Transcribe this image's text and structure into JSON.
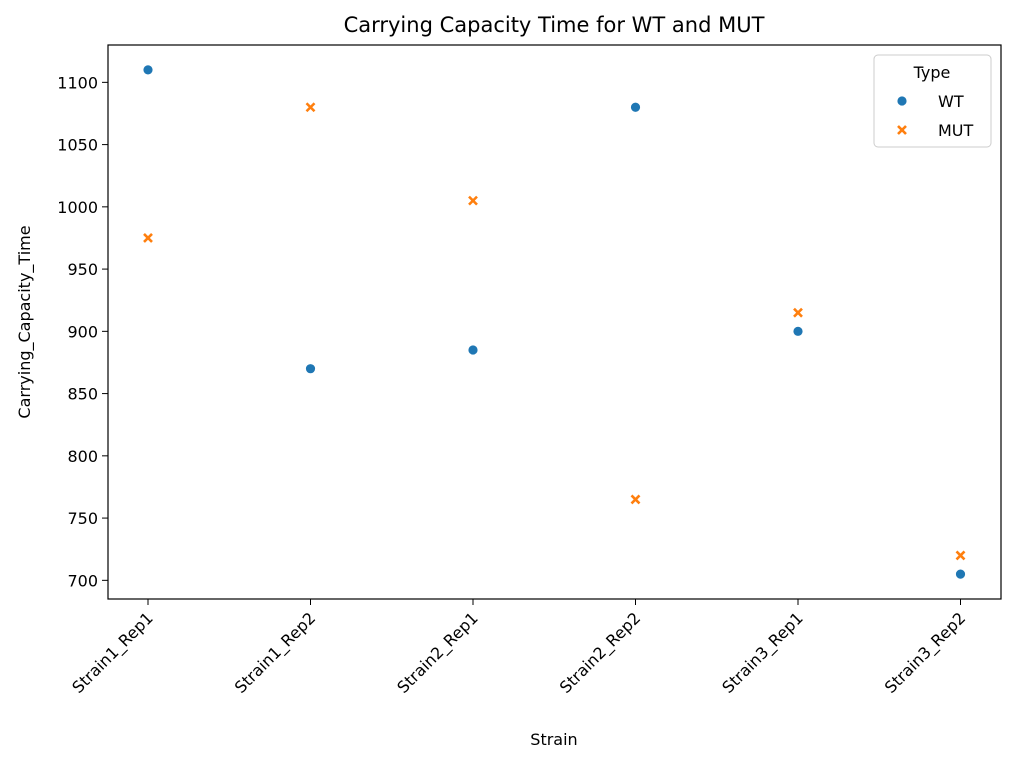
{
  "chart_data": {
    "type": "scatter",
    "title": "Carrying Capacity Time for WT and MUT",
    "xlabel": "Strain",
    "ylabel": "Carrying_Capacity_Time",
    "categories": [
      "Strain1_Rep1",
      "Strain1_Rep2",
      "Strain2_Rep1",
      "Strain2_Rep2",
      "Strain3_Rep1",
      "Strain3_Rep2"
    ],
    "ylim": [
      685,
      1130
    ],
    "yticks": [
      700,
      750,
      800,
      850,
      900,
      950,
      1000,
      1050,
      1100
    ],
    "grid": false,
    "legend": {
      "title": "Type",
      "placement": "top-right"
    },
    "series": [
      {
        "name": "WT",
        "marker": "circle",
        "color": "#1f77b4",
        "values": [
          1110,
          870,
          885,
          1080,
          900,
          705
        ]
      },
      {
        "name": "MUT",
        "marker": "x",
        "color": "#ff7f0e",
        "values": [
          975,
          1080,
          1005,
          765,
          915,
          720
        ]
      }
    ]
  }
}
